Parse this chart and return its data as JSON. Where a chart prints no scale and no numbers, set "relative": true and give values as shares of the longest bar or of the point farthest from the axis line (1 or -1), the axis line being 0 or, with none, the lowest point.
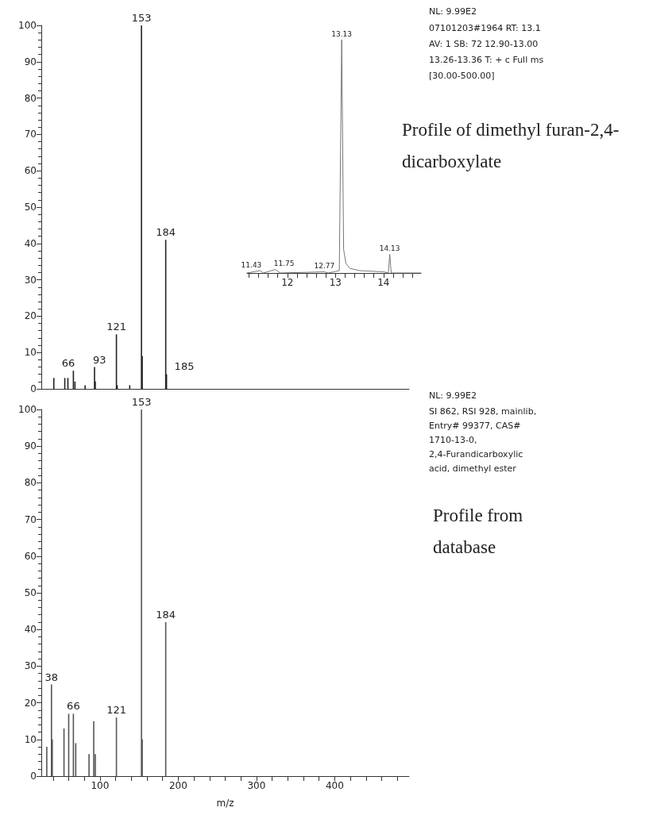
{
  "chart_data": [
    {
      "type": "bar",
      "color": "#222222",
      "xlim": [
        25,
        495
      ],
      "ylim": [
        0,
        100
      ],
      "yticks": [
        0,
        10,
        20,
        30,
        40,
        50,
        60,
        70,
        80,
        90,
        100
      ],
      "tick_labels": "y",
      "x": [
        41,
        55,
        59,
        66,
        68,
        81,
        93,
        94,
        121,
        122,
        138,
        153,
        154,
        184,
        185
      ],
      "values": [
        3,
        3,
        3,
        5,
        2,
        1,
        6,
        2,
        15,
        1,
        1,
        100,
        9,
        41,
        4
      ],
      "annotations": [
        "NL: 9.99E2",
        "07101203#1964  RT: 13.1",
        "AV: 1 SB: 72  12.90-13.00",
        "13.26-13.36 T: + c Full ms",
        "[30.00-500.00]",
        "Profile of dimethyl furan-2,4-dicarboxylate",
        {
          "text": "153",
          "x": 153,
          "y": 100
        },
        {
          "text": "184",
          "x": 184,
          "y": 41
        },
        {
          "text": "121",
          "x": 121,
          "y": 15
        },
        {
          "text": "93",
          "x": 93,
          "y": 6
        },
        {
          "text": "66",
          "x": 66,
          "y": 5
        },
        {
          "text": "185",
          "x": 185,
          "y": 4
        }
      ]
    },
    {
      "type": "line",
      "relative": true,
      "color": "#777777",
      "xlim": [
        11.16,
        14.78
      ],
      "xticks": [
        {
          "value": 11.2,
          "label": null
        },
        {
          "value": 11.4,
          "label": null
        },
        {
          "value": 11.6,
          "label": null
        },
        {
          "value": 11.8,
          "label": null
        },
        12,
        {
          "value": 12.2,
          "label": null
        },
        {
          "value": 12.4,
          "label": null
        },
        {
          "value": 12.6,
          "label": null
        },
        {
          "value": 12.8,
          "label": null
        },
        13,
        {
          "value": 13.2,
          "label": null
        },
        {
          "value": 13.4,
          "label": null
        },
        {
          "value": 13.6,
          "label": null
        },
        {
          "value": 13.8,
          "label": null
        },
        14,
        {
          "value": 14.2,
          "label": null
        },
        {
          "value": 14.4,
          "label": null
        },
        {
          "value": 14.6,
          "label": null
        }
      ],
      "x": [
        11.16,
        11.43,
        11.5,
        11.75,
        11.85,
        12.77,
        12.85,
        13.08,
        13.13,
        13.17,
        13.22,
        13.3,
        13.5,
        14.0,
        14.1,
        14.13,
        14.16,
        14.78
      ],
      "values": [
        0,
        0.01,
        0,
        0.015,
        0,
        0.005,
        0,
        0.01,
        1,
        0.1,
        0.04,
        0.02,
        0.01,
        0.005,
        0,
        0.08,
        0,
        0
      ],
      "annotations": [
        {
          "text": "13.13",
          "x": 13.13,
          "y": 1
        },
        {
          "text": "11.43",
          "x": 11.43,
          "y": 0.01
        },
        {
          "text": "11.75",
          "x": 11.75,
          "y": 0.015
        },
        {
          "text": "12.77",
          "x": 12.77,
          "y": 0.005
        },
        {
          "text": "14.13",
          "x": 14.13,
          "y": 0.08
        }
      ]
    },
    {
      "type": "bar",
      "color": "#555555",
      "xlim": [
        25,
        495
      ],
      "ylim": [
        0,
        100
      ],
      "yticks": [
        0,
        10,
        20,
        30,
        40,
        50,
        60,
        70,
        80,
        90,
        100
      ],
      "xlabel": "m/z",
      "xticks": [
        {
          "value": 40,
          "label": null
        },
        {
          "value": 60,
          "label": null
        },
        {
          "value": 80,
          "label": null
        },
        100,
        {
          "value": 120,
          "label": null
        },
        {
          "value": 140,
          "label": null
        },
        {
          "value": 160,
          "label": null
        },
        {
          "value": 180,
          "label": null
        },
        200,
        {
          "value": 220,
          "label": null
        },
        {
          "value": 240,
          "label": null
        },
        {
          "value": 260,
          "label": null
        },
        {
          "value": 280,
          "label": null
        },
        300,
        {
          "value": 320,
          "label": null
        },
        {
          "value": 340,
          "label": null
        },
        {
          "value": 360,
          "label": null
        },
        {
          "value": 380,
          "label": null
        },
        400,
        {
          "value": 420,
          "label": null
        },
        {
          "value": 440,
          "label": null
        },
        {
          "value": 460,
          "label": null
        },
        {
          "value": 480,
          "label": null
        }
      ],
      "x": [
        32,
        38,
        39,
        54,
        60,
        66,
        69,
        86,
        92,
        94,
        121,
        153,
        154,
        184
      ],
      "values": [
        8,
        25,
        10,
        13,
        17,
        17,
        9,
        6,
        15,
        6,
        16,
        100,
        10,
        42
      ],
      "annotations": [
        "NL: 9.99E2",
        "SI 862, RSI 928, mainlib,",
        "Entry# 99377, CAS#",
        "1710-13-0,",
        "2,4-Furandicarboxylic",
        "acid, dimethyl ester",
        "Profile from database",
        {
          "text": "153",
          "x": 153,
          "y": 100
        },
        {
          "text": "184",
          "x": 184,
          "y": 42
        },
        {
          "text": "38",
          "x": 38,
          "y": 25
        },
        {
          "text": "66",
          "x": 66,
          "y": 17
        },
        {
          "text": "121",
          "x": 121,
          "y": 16
        }
      ]
    }
  ]
}
